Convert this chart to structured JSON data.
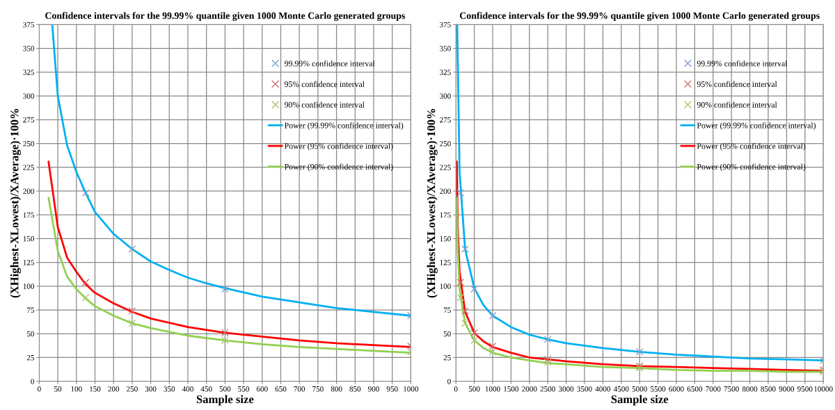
{
  "chart_data": [
    {
      "type": "scatter",
      "title": "Confidence intervals for the 99.99% quantile given 1000 Monte Carlo generated groups",
      "xlabel": "Sample size",
      "ylabel": "(XHighest-XLowest)/XAverage)·100%",
      "xlim": [
        0,
        1000
      ],
      "xticks": [
        0,
        50,
        100,
        150,
        200,
        250,
        300,
        350,
        400,
        450,
        500,
        550,
        600,
        650,
        700,
        750,
        800,
        850,
        900,
        950,
        1000
      ],
      "ylim": [
        0,
        375
      ],
      "yticks": [
        0,
        25,
        50,
        75,
        100,
        125,
        150,
        175,
        200,
        225,
        250,
        275,
        300,
        325,
        350,
        375
      ],
      "grid": true,
      "legend": "top right",
      "series": [
        {
          "name": "99.99% confidence interval",
          "type": "scatter",
          "marker": "cross",
          "color": "#7f9fd0",
          "x": [
            125,
            250,
            500,
            1000
          ],
          "values": [
            198,
            139,
            97,
            69
          ]
        },
        {
          "name": "95% confidence interval",
          "type": "scatter",
          "marker": "cross",
          "color": "#d0706d",
          "x": [
            125,
            250,
            500,
            1000
          ],
          "values": [
            104,
            74,
            51,
            37
          ]
        },
        {
          "name": "90% confidence interval",
          "type": "scatter",
          "marker": "cross",
          "color": "#a8c66e",
          "x": [
            125,
            250,
            500,
            1000
          ],
          "values": [
            88,
            61,
            43,
            31
          ]
        },
        {
          "name": "Power (99.99% confidence interval)",
          "type": "line",
          "marker": "none",
          "line_style": "solid",
          "color": "#00b0f0",
          "x": [
            35,
            50,
            75,
            100,
            125,
            150,
            200,
            250,
            300,
            350,
            400,
            450,
            500,
            600,
            700,
            800,
            900,
            1000
          ],
          "values": [
            375,
            300,
            248,
            220,
            198,
            178,
            155,
            139,
            126,
            117,
            109,
            103,
            98,
            89,
            83,
            77,
            73,
            69
          ]
        },
        {
          "name": "Power (95% confidence interval)",
          "type": "line",
          "marker": "none",
          "line_style": "solid",
          "color": "#ff0000",
          "x": [
            25,
            50,
            75,
            100,
            125,
            150,
            200,
            250,
            300,
            400,
            500,
            600,
            700,
            800,
            900,
            1000
          ],
          "values": [
            231,
            162,
            130,
            115,
            102,
            93,
            82,
            73,
            66,
            57,
            51,
            47,
            43,
            40,
            38,
            36
          ]
        },
        {
          "name": "Power (90% confidence interval)",
          "type": "line",
          "marker": "none",
          "line_style": "solid",
          "color": "#92d050",
          "x": [
            25,
            50,
            75,
            100,
            125,
            150,
            200,
            250,
            300,
            400,
            500,
            600,
            700,
            800,
            900,
            1000
          ],
          "values": [
            193,
            137,
            110,
            97,
            87,
            79,
            69,
            61,
            56,
            48,
            43,
            39,
            36,
            34,
            32,
            30
          ]
        }
      ]
    },
    {
      "type": "scatter",
      "title": "Confidence intervals for the 99.99% quantile given 1000 Monte Carlo generated groups",
      "xlabel": "Sample size",
      "ylabel": "(XHighest-XLowest)/XAverage)·100%",
      "xlim": [
        0,
        10000
      ],
      "xticks": [
        0,
        500,
        1000,
        1500,
        2000,
        2500,
        3000,
        3500,
        4000,
        4500,
        5000,
        5500,
        6000,
        6500,
        7000,
        7500,
        8000,
        8500,
        9000,
        9500,
        10000
      ],
      "ylim": [
        0,
        375
      ],
      "yticks": [
        0,
        25,
        50,
        75,
        100,
        125,
        150,
        175,
        200,
        225,
        250,
        275,
        300,
        325,
        350,
        375
      ],
      "grid": true,
      "legend": "top right",
      "series": [
        {
          "name": "99.99% confidence interval",
          "type": "scatter",
          "marker": "cross",
          "color": "#7f9fd0",
          "x": [
            125,
            250,
            500,
            1000,
            2500,
            5000,
            10000
          ],
          "values": [
            198,
            139,
            97,
            69,
            44,
            31,
            22
          ]
        },
        {
          "name": "95% confidence interval",
          "type": "scatter",
          "marker": "cross",
          "color": "#d0706d",
          "x": [
            125,
            250,
            500,
            1000,
            2500,
            5000,
            10000
          ],
          "values": [
            104,
            74,
            51,
            37,
            23,
            16,
            12
          ]
        },
        {
          "name": "90% confidence interval",
          "type": "scatter",
          "marker": "cross",
          "color": "#a8c66e",
          "x": [
            125,
            250,
            500,
            1000,
            2500,
            5000,
            10000
          ],
          "values": [
            88,
            61,
            43,
            31,
            20,
            14,
            10
          ]
        },
        {
          "name": "Power (99.99% confidence interval)",
          "type": "line",
          "marker": "none",
          "line_style": "solid",
          "color": "#00b0f0",
          "x": [
            35,
            100,
            250,
            500,
            750,
            1000,
            1500,
            2000,
            2500,
            3000,
            4000,
            5000,
            6000,
            7000,
            8000,
            9000,
            10000
          ],
          "values": [
            375,
            220,
            139,
            98,
            80,
            69,
            57,
            49,
            44,
            40,
            35,
            31,
            28,
            26,
            24,
            23,
            22
          ]
        },
        {
          "name": "Power (95% confidence interval)",
          "type": "line",
          "marker": "none",
          "line_style": "solid",
          "color": "#ff0000",
          "x": [
            25,
            50,
            100,
            250,
            500,
            750,
            1000,
            1500,
            2000,
            2500,
            3000,
            4000,
            5000,
            6000,
            7000,
            8000,
            9000,
            10000
          ],
          "values": [
            231,
            162,
            115,
            73,
            51,
            42,
            36,
            30,
            25,
            23,
            21,
            18,
            16,
            15,
            14,
            13,
            12,
            11
          ]
        },
        {
          "name": "Power (90% confidence interval)",
          "type": "line",
          "marker": "none",
          "line_style": "solid",
          "color": "#92d050",
          "x": [
            25,
            50,
            100,
            250,
            500,
            750,
            1000,
            1500,
            2000,
            2500,
            3000,
            4000,
            5000,
            6000,
            7000,
            8000,
            9000,
            10000
          ],
          "values": [
            193,
            137,
            97,
            61,
            43,
            35,
            30,
            25,
            22,
            19,
            18,
            15,
            14,
            12,
            11,
            11,
            10,
            10
          ]
        }
      ]
    }
  ]
}
